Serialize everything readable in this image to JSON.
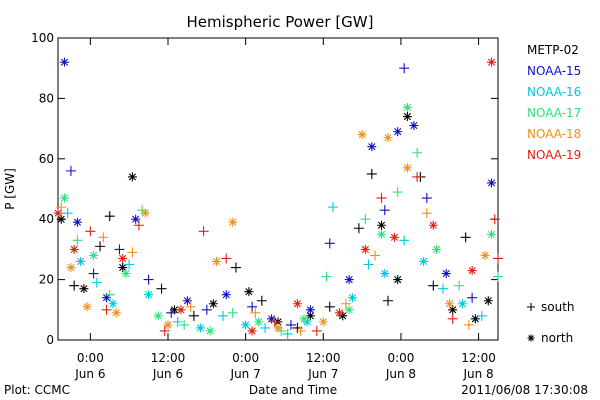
{
  "chart_data": {
    "type": "scatter",
    "title": "Hemispheric Power [GW]",
    "xlabel": "Date and Time",
    "ylabel": "P [GW]",
    "ylim": [
      0,
      100
    ],
    "xlim": [
      "2011-06-05 19:00",
      "2011-06-08 15:00"
    ],
    "y_ticks": [
      0,
      20,
      40,
      60,
      80,
      100
    ],
    "x_ticks": [
      {
        "t": "2011-06-06 00:00",
        "time": "0:00",
        "date": "Jun 6"
      },
      {
        "t": "2011-06-06 12:00",
        "time": "12:00",
        "date": "Jun 6"
      },
      {
        "t": "2011-06-07 00:00",
        "time": "0:00",
        "date": "Jun 7"
      },
      {
        "t": "2011-06-07 12:00",
        "time": "12:00",
        "date": "Jun 7"
      },
      {
        "t": "2011-06-08 00:00",
        "time": "0:00",
        "date": "Jun 8"
      },
      {
        "t": "2011-06-08 12:00",
        "time": "12:00",
        "date": "Jun 8"
      }
    ],
    "legend_position": "right",
    "marker_legend": [
      {
        "symbol": "+",
        "label": "south"
      },
      {
        "symbol": "*",
        "label": "north"
      }
    ],
    "series": [
      {
        "name": "METP-02",
        "color": "#000000",
        "points": [
          {
            "x": "2011-06-05 19:30",
            "y": 40,
            "m": "*"
          },
          {
            "x": "2011-06-05 21:30",
            "y": 18,
            "m": "+"
          },
          {
            "x": "2011-06-05 23:00",
            "y": 17,
            "m": "*"
          },
          {
            "x": "2011-06-06 01:30",
            "y": 31,
            "m": "+"
          },
          {
            "x": "2011-06-06 03:00",
            "y": 41,
            "m": "+"
          },
          {
            "x": "2011-06-06 05:00",
            "y": 24,
            "m": "*"
          },
          {
            "x": "2011-06-06 06:30",
            "y": 54,
            "m": "*"
          },
          {
            "x": "2011-06-06 11:00",
            "y": 17,
            "m": "+"
          },
          {
            "x": "2011-06-06 13:00",
            "y": 10,
            "m": "*"
          },
          {
            "x": "2011-06-06 16:00",
            "y": 8,
            "m": "+"
          },
          {
            "x": "2011-06-06 19:00",
            "y": 12,
            "m": "*"
          },
          {
            "x": "2011-06-06 22:30",
            "y": 24,
            "m": "+"
          },
          {
            "x": "2011-06-07 00:30",
            "y": 16,
            "m": "*"
          },
          {
            "x": "2011-06-07 02:30",
            "y": 13,
            "m": "+"
          },
          {
            "x": "2011-06-07 05:00",
            "y": 6,
            "m": "*"
          },
          {
            "x": "2011-06-07 08:00",
            "y": 4,
            "m": "+"
          },
          {
            "x": "2011-06-07 10:00",
            "y": 8,
            "m": "*"
          },
          {
            "x": "2011-06-07 13:00",
            "y": 11,
            "m": "+"
          },
          {
            "x": "2011-06-07 15:00",
            "y": 8,
            "m": "*"
          },
          {
            "x": "2011-06-07 17:30",
            "y": 37,
            "m": "+"
          },
          {
            "x": "2011-06-07 19:30",
            "y": 55,
            "m": "+"
          },
          {
            "x": "2011-06-07 21:00",
            "y": 38,
            "m": "*"
          },
          {
            "x": "2011-06-07 22:00",
            "y": 13,
            "m": "+"
          },
          {
            "x": "2011-06-07 23:30",
            "y": 20,
            "m": "*"
          },
          {
            "x": "2011-06-08 01:00",
            "y": 74,
            "m": "*"
          },
          {
            "x": "2011-06-08 03:00",
            "y": 54,
            "m": "+"
          },
          {
            "x": "2011-06-08 05:00",
            "y": 18,
            "m": "+"
          },
          {
            "x": "2011-06-08 08:00",
            "y": 10,
            "m": "*"
          },
          {
            "x": "2011-06-08 10:00",
            "y": 34,
            "m": "+"
          },
          {
            "x": "2011-06-08 11:30",
            "y": 7,
            "m": "*"
          },
          {
            "x": "2011-06-08 13:30",
            "y": 13,
            "m": "*"
          }
        ]
      },
      {
        "name": "NOAA-15",
        "color": "#1010c8",
        "points": [
          {
            "x": "2011-06-05 20:00",
            "y": 92,
            "m": "*"
          },
          {
            "x": "2011-06-05 21:00",
            "y": 56,
            "m": "+"
          },
          {
            "x": "2011-06-05 22:00",
            "y": 39,
            "m": "*"
          },
          {
            "x": "2011-06-06 00:30",
            "y": 22,
            "m": "+"
          },
          {
            "x": "2011-06-06 02:30",
            "y": 14,
            "m": "*"
          },
          {
            "x": "2011-06-06 04:30",
            "y": 30,
            "m": "+"
          },
          {
            "x": "2011-06-06 07:00",
            "y": 40,
            "m": "*"
          },
          {
            "x": "2011-06-06 09:00",
            "y": 20,
            "m": "+"
          },
          {
            "x": "2011-06-06 12:30",
            "y": 9,
            "m": "+"
          },
          {
            "x": "2011-06-06 15:00",
            "y": 13,
            "m": "*"
          },
          {
            "x": "2011-06-06 18:00",
            "y": 10,
            "m": "+"
          },
          {
            "x": "2011-06-06 21:00",
            "y": 15,
            "m": "*"
          },
          {
            "x": "2011-06-07 01:00",
            "y": 11,
            "m": "+"
          },
          {
            "x": "2011-06-07 04:00",
            "y": 7,
            "m": "*"
          },
          {
            "x": "2011-06-07 07:00",
            "y": 5,
            "m": "+"
          },
          {
            "x": "2011-06-07 10:00",
            "y": 10,
            "m": "*"
          },
          {
            "x": "2011-06-07 13:00",
            "y": 32,
            "m": "+"
          },
          {
            "x": "2011-06-07 16:00",
            "y": 20,
            "m": "*"
          },
          {
            "x": "2011-06-07 19:30",
            "y": 64,
            "m": "*"
          },
          {
            "x": "2011-06-07 21:30",
            "y": 43,
            "m": "+"
          },
          {
            "x": "2011-06-07 23:30",
            "y": 69,
            "m": "*"
          },
          {
            "x": "2011-06-08 00:30",
            "y": 90,
            "m": "+"
          },
          {
            "x": "2011-06-08 02:00",
            "y": 71,
            "m": "*"
          },
          {
            "x": "2011-06-08 04:00",
            "y": 47,
            "m": "+"
          },
          {
            "x": "2011-06-08 07:00",
            "y": 22,
            "m": "*"
          },
          {
            "x": "2011-06-08 11:00",
            "y": 14,
            "m": "+"
          },
          {
            "x": "2011-06-08 14:00",
            "y": 52,
            "m": "*"
          }
        ]
      },
      {
        "name": "NOAA-16",
        "color": "#00c8dc",
        "points": [
          {
            "x": "2011-06-05 20:30",
            "y": 42,
            "m": "+"
          },
          {
            "x": "2011-06-05 22:30",
            "y": 26,
            "m": "*"
          },
          {
            "x": "2011-06-06 01:00",
            "y": 19,
            "m": "+"
          },
          {
            "x": "2011-06-06 03:30",
            "y": 12,
            "m": "*"
          },
          {
            "x": "2011-06-06 06:00",
            "y": 25,
            "m": "+"
          },
          {
            "x": "2011-06-06 09:00",
            "y": 15,
            "m": "*"
          },
          {
            "x": "2011-06-06 13:30",
            "y": 6,
            "m": "+"
          },
          {
            "x": "2011-06-06 17:00",
            "y": 4,
            "m": "*"
          },
          {
            "x": "2011-06-06 20:30",
            "y": 8,
            "m": "+"
          },
          {
            "x": "2011-06-07 00:00",
            "y": 5,
            "m": "*"
          },
          {
            "x": "2011-06-07 03:00",
            "y": 4,
            "m": "+"
          },
          {
            "x": "2011-06-07 06:30",
            "y": 2,
            "m": "+"
          },
          {
            "x": "2011-06-07 09:30",
            "y": 6,
            "m": "*"
          },
          {
            "x": "2011-06-07 13:30",
            "y": 44,
            "m": "+"
          },
          {
            "x": "2011-06-07 16:30",
            "y": 14,
            "m": "*"
          },
          {
            "x": "2011-06-07 19:00",
            "y": 25,
            "m": "+"
          },
          {
            "x": "2011-06-07 21:30",
            "y": 22,
            "m": "*"
          },
          {
            "x": "2011-06-08 00:30",
            "y": 33,
            "m": "+"
          },
          {
            "x": "2011-06-08 03:30",
            "y": 26,
            "m": "*"
          },
          {
            "x": "2011-06-08 06:30",
            "y": 17,
            "m": "+"
          },
          {
            "x": "2011-06-08 09:30",
            "y": 12,
            "m": "*"
          },
          {
            "x": "2011-06-08 12:30",
            "y": 8,
            "m": "+"
          }
        ]
      },
      {
        "name": "NOAA-17",
        "color": "#30e080",
        "points": [
          {
            "x": "2011-06-05 20:00",
            "y": 47,
            "m": "*"
          },
          {
            "x": "2011-06-05 22:00",
            "y": 33,
            "m": "+"
          },
          {
            "x": "2011-06-06 00:30",
            "y": 28,
            "m": "*"
          },
          {
            "x": "2011-06-06 03:00",
            "y": 15,
            "m": "+"
          },
          {
            "x": "2011-06-06 05:30",
            "y": 22,
            "m": "*"
          },
          {
            "x": "2011-06-06 08:00",
            "y": 43,
            "m": "+"
          },
          {
            "x": "2011-06-06 10:30",
            "y": 8,
            "m": "*"
          },
          {
            "x": "2011-06-06 14:30",
            "y": 5,
            "m": "+"
          },
          {
            "x": "2011-06-06 18:30",
            "y": 3,
            "m": "*"
          },
          {
            "x": "2011-06-06 22:00",
            "y": 9,
            "m": "+"
          },
          {
            "x": "2011-06-07 02:00",
            "y": 6,
            "m": "*"
          },
          {
            "x": "2011-06-07 05:30",
            "y": 3,
            "m": "+"
          },
          {
            "x": "2011-06-07 09:00",
            "y": 7,
            "m": "*"
          },
          {
            "x": "2011-06-07 12:30",
            "y": 21,
            "m": "+"
          },
          {
            "x": "2011-06-07 16:00",
            "y": 10,
            "m": "*"
          },
          {
            "x": "2011-06-07 18:30",
            "y": 40,
            "m": "+"
          },
          {
            "x": "2011-06-07 21:00",
            "y": 35,
            "m": "*"
          },
          {
            "x": "2011-06-07 23:30",
            "y": 49,
            "m": "+"
          },
          {
            "x": "2011-06-08 01:00",
            "y": 77,
            "m": "*"
          },
          {
            "x": "2011-06-08 02:30",
            "y": 62,
            "m": "+"
          },
          {
            "x": "2011-06-08 05:30",
            "y": 30,
            "m": "*"
          },
          {
            "x": "2011-06-08 09:00",
            "y": 18,
            "m": "+"
          },
          {
            "x": "2011-06-08 14:00",
            "y": 35,
            "m": "*"
          },
          {
            "x": "2011-06-08 15:00",
            "y": 21,
            "m": "+"
          }
        ]
      },
      {
        "name": "NOAA-18",
        "color": "#f09018",
        "points": [
          {
            "x": "2011-06-05 19:30",
            "y": 44,
            "m": "+"
          },
          {
            "x": "2011-06-05 21:00",
            "y": 24,
            "m": "*"
          },
          {
            "x": "2011-06-05 23:30",
            "y": 11,
            "m": "*"
          },
          {
            "x": "2011-06-06 02:00",
            "y": 34,
            "m": "+"
          },
          {
            "x": "2011-06-06 04:00",
            "y": 9,
            "m": "*"
          },
          {
            "x": "2011-06-06 06:30",
            "y": 29,
            "m": "+"
          },
          {
            "x": "2011-06-06 08:30",
            "y": 42,
            "m": "*"
          },
          {
            "x": "2011-06-06 12:00",
            "y": 5,
            "m": "*"
          },
          {
            "x": "2011-06-06 15:30",
            "y": 11,
            "m": "+"
          },
          {
            "x": "2011-06-06 19:30",
            "y": 26,
            "m": "*"
          },
          {
            "x": "2011-06-06 22:00",
            "y": 39,
            "m": "*"
          },
          {
            "x": "2011-06-07 01:30",
            "y": 9,
            "m": "+"
          },
          {
            "x": "2011-06-07 05:00",
            "y": 4,
            "m": "*"
          },
          {
            "x": "2011-06-07 08:30",
            "y": 3,
            "m": "+"
          },
          {
            "x": "2011-06-07 12:00",
            "y": 6,
            "m": "*"
          },
          {
            "x": "2011-06-07 15:30",
            "y": 12,
            "m": "+"
          },
          {
            "x": "2011-06-07 18:00",
            "y": 68,
            "m": "*"
          },
          {
            "x": "2011-06-07 20:00",
            "y": 28,
            "m": "+"
          },
          {
            "x": "2011-06-07 22:00",
            "y": 67,
            "m": "*"
          },
          {
            "x": "2011-06-08 01:00",
            "y": 57,
            "m": "*"
          },
          {
            "x": "2011-06-08 04:00",
            "y": 42,
            "m": "+"
          },
          {
            "x": "2011-06-08 07:30",
            "y": 12,
            "m": "*"
          },
          {
            "x": "2011-06-08 10:30",
            "y": 5,
            "m": "+"
          },
          {
            "x": "2011-06-08 13:00",
            "y": 28,
            "m": "*"
          }
        ]
      },
      {
        "name": "NOAA-19",
        "color": "#e02010",
        "points": [
          {
            "x": "2011-06-05 19:00",
            "y": 42,
            "m": "*"
          },
          {
            "x": "2011-06-05 21:30",
            "y": 30,
            "m": "*"
          },
          {
            "x": "2011-06-06 00:00",
            "y": 36,
            "m": "+"
          },
          {
            "x": "2011-06-06 02:30",
            "y": 10,
            "m": "+"
          },
          {
            "x": "2011-06-06 05:00",
            "y": 27,
            "m": "*"
          },
          {
            "x": "2011-06-06 07:30",
            "y": 38,
            "m": "+"
          },
          {
            "x": "2011-06-06 11:30",
            "y": 3,
            "m": "+"
          },
          {
            "x": "2011-06-06 14:00",
            "y": 10,
            "m": "*"
          },
          {
            "x": "2011-06-06 17:30",
            "y": 36,
            "m": "+"
          },
          {
            "x": "2011-06-06 21:00",
            "y": 27,
            "m": "+"
          },
          {
            "x": "2011-06-07 01:00",
            "y": 3,
            "m": "*"
          },
          {
            "x": "2011-06-07 04:30",
            "y": 6,
            "m": "+"
          },
          {
            "x": "2011-06-07 08:00",
            "y": 12,
            "m": "*"
          },
          {
            "x": "2011-06-07 11:00",
            "y": 3,
            "m": "+"
          },
          {
            "x": "2011-06-07 14:30",
            "y": 9,
            "m": "*"
          },
          {
            "x": "2011-06-07 18:30",
            "y": 30,
            "m": "*"
          },
          {
            "x": "2011-06-07 21:00",
            "y": 47,
            "m": "+"
          },
          {
            "x": "2011-06-07 23:00",
            "y": 34,
            "m": "*"
          },
          {
            "x": "2011-06-08 02:30",
            "y": 54,
            "m": "+"
          },
          {
            "x": "2011-06-08 05:00",
            "y": 38,
            "m": "*"
          },
          {
            "x": "2011-06-08 08:00",
            "y": 7,
            "m": "+"
          },
          {
            "x": "2011-06-08 11:00",
            "y": 23,
            "m": "*"
          },
          {
            "x": "2011-06-08 14:00",
            "y": 92,
            "m": "*"
          },
          {
            "x": "2011-06-08 14:30",
            "y": 40,
            "m": "+"
          },
          {
            "x": "2011-06-08 15:00",
            "y": 27,
            "m": "+"
          }
        ]
      }
    ]
  },
  "footer": {
    "left": "Plot: CCMC",
    "right": "2011/06/08 17:30:08"
  }
}
